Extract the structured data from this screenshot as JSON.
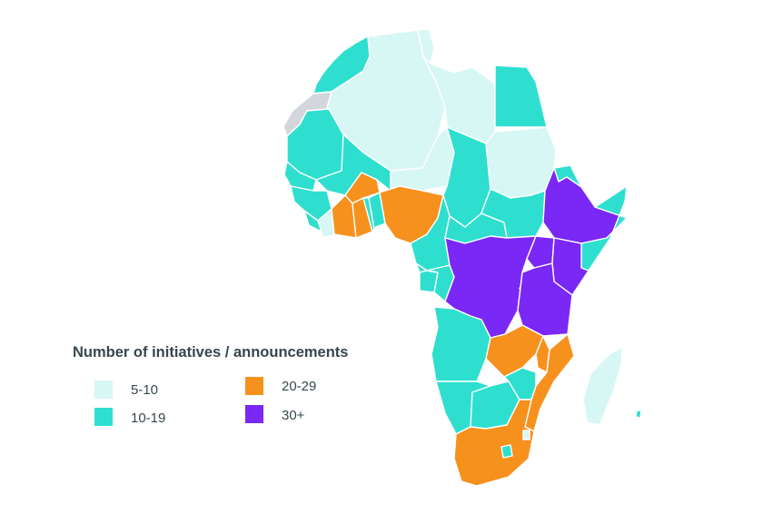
{
  "legend": {
    "title": "Number of initiatives / announcements",
    "items": [
      {
        "label": "5-10",
        "color": "#d7f7f4"
      },
      {
        "label": "10-19",
        "color": "#2edfcf"
      },
      {
        "label": "20-29",
        "color": "#f6911e"
      },
      {
        "label": "30+",
        "color": "#7a28f5"
      }
    ]
  },
  "colors": {
    "no_data": "#d4d6de",
    "border": "#ffffff",
    "background": "#ffffff"
  }
}
